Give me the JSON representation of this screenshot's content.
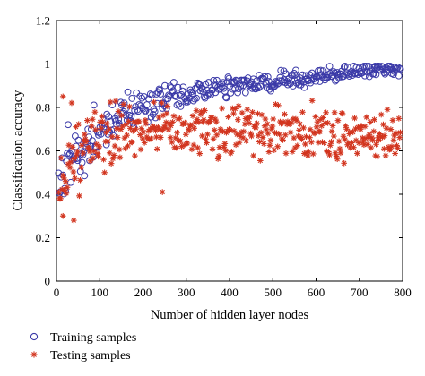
{
  "chart_data": {
    "type": "scatter",
    "title": "",
    "xlabel": "Number of hidden layer nodes",
    "ylabel": "Classification accuracy",
    "xlim": [
      0,
      800
    ],
    "ylim": [
      0,
      1.2
    ],
    "x_ticks": [
      0,
      100,
      200,
      300,
      400,
      500,
      600,
      700,
      800
    ],
    "y_ticks": [
      0,
      0.2,
      0.4,
      0.6,
      0.8,
      1,
      1.2
    ],
    "x_tick_labels": [
      "0",
      "100",
      "200",
      "300",
      "400",
      "500",
      "600",
      "700",
      "800"
    ],
    "y_tick_labels": [
      "0",
      "0.2",
      "0.4",
      "0.6",
      "0.8",
      "1",
      "1.2"
    ],
    "reference_line_y": 1,
    "grid": false,
    "legend_position": "bottom-left, below the plot",
    "x_range": [
      5,
      795
    ],
    "x_step": 2,
    "series": [
      {
        "name": "Training samples",
        "marker": "circle-open",
        "color": "#3b3aa8",
        "trend_anchors": [
          [
            5,
            0.42
          ],
          [
            20,
            0.5
          ],
          [
            50,
            0.6
          ],
          [
            100,
            0.69
          ],
          [
            150,
            0.76
          ],
          [
            200,
            0.8
          ],
          [
            250,
            0.83
          ],
          [
            300,
            0.86
          ],
          [
            350,
            0.88
          ],
          [
            400,
            0.9
          ],
          [
            450,
            0.91
          ],
          [
            500,
            0.92
          ],
          [
            550,
            0.93
          ],
          [
            600,
            0.945
          ],
          [
            650,
            0.955
          ],
          [
            700,
            0.965
          ],
          [
            750,
            0.972
          ],
          [
            795,
            0.975
          ]
        ],
        "spread_anchors": [
          [
            5,
            0.14
          ],
          [
            50,
            0.12
          ],
          [
            100,
            0.1
          ],
          [
            200,
            0.07
          ],
          [
            300,
            0.05
          ],
          [
            400,
            0.045
          ],
          [
            600,
            0.035
          ],
          [
            795,
            0.025
          ]
        ],
        "max_value": 0.99
      },
      {
        "name": "Testing samples",
        "marker": "asterisk",
        "color": "#d2351f",
        "trend_anchors": [
          [
            5,
            0.42
          ],
          [
            20,
            0.53
          ],
          [
            50,
            0.6
          ],
          [
            100,
            0.64
          ],
          [
            150,
            0.67
          ],
          [
            200,
            0.69
          ],
          [
            250,
            0.7
          ],
          [
            300,
            0.7
          ],
          [
            400,
            0.7
          ],
          [
            500,
            0.69
          ],
          [
            600,
            0.68
          ],
          [
            700,
            0.67
          ],
          [
            795,
            0.665
          ]
        ],
        "spread_anchors": [
          [
            5,
            0.15
          ],
          [
            50,
            0.14
          ],
          [
            100,
            0.12
          ],
          [
            200,
            0.11
          ],
          [
            400,
            0.1
          ],
          [
            795,
            0.1
          ]
        ],
        "outliers": [
          [
            15,
            0.3
          ],
          [
            40,
            0.28
          ],
          [
            245,
            0.41
          ],
          [
            15,
            0.85
          ]
        ],
        "max_value": 0.9
      }
    ]
  },
  "legend": [
    {
      "label": "Training samples",
      "marker": "circle-open"
    },
    {
      "label": "Testing samples",
      "marker": "asterisk"
    }
  ]
}
